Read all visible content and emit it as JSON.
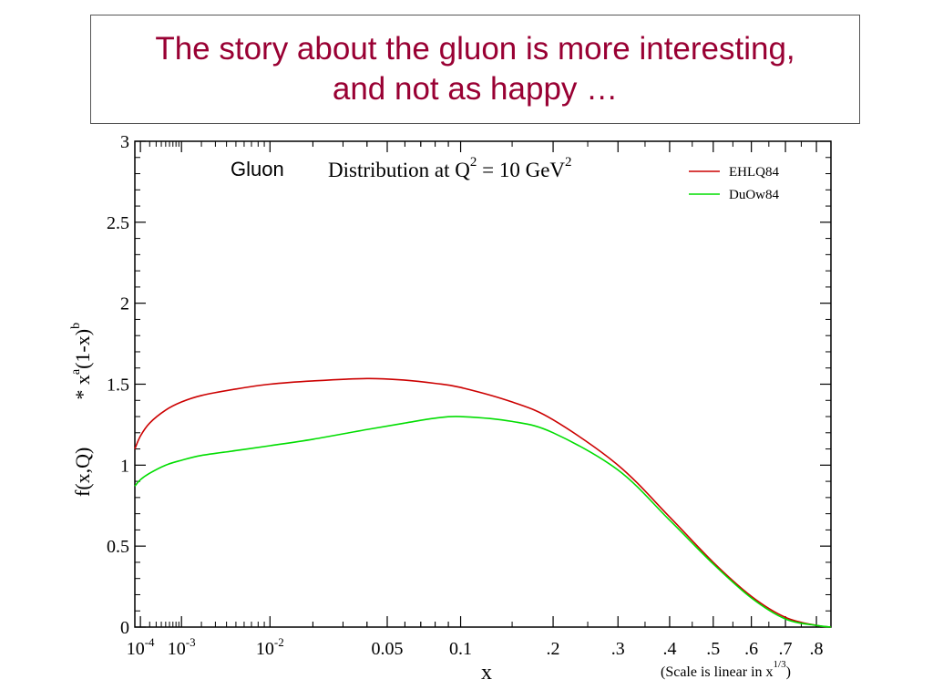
{
  "slide": {
    "title_line1": "The story about the gluon is more interesting,",
    "title_line2": "and not as happy …"
  },
  "chart_data": {
    "type": "line",
    "panel_label": "Gluon",
    "title_main": "Distribution at Q",
    "title_sup1": "2",
    "title_mid": " = 10 GeV",
    "title_sup2": "2",
    "xlabel": "x",
    "x_scale_note_main": "(Scale is linear in x",
    "x_scale_note_sup": "1/3",
    "x_scale_note_end": ")",
    "ylabel_main": "f(x,Q)",
    "ylabel_star": "* x",
    "ylabel_sup_a": "a",
    "ylabel_mid": "(1-x)",
    "ylabel_sup_b": "b",
    "x_scale": "cube-root",
    "xlim": [
      6e-05,
      0.85
    ],
    "ylim": [
      0,
      3
    ],
    "y_ticks": [
      {
        "value": 0,
        "label": "0"
      },
      {
        "value": 0.5,
        "label": "0.5"
      },
      {
        "value": 1,
        "label": "1"
      },
      {
        "value": 1.5,
        "label": "1.5"
      },
      {
        "value": 2,
        "label": "2"
      },
      {
        "value": 2.5,
        "label": "2.5"
      },
      {
        "value": 3,
        "label": "3"
      }
    ],
    "x_ticks": [
      {
        "value": 0.0001,
        "label": "10",
        "sup": "-4"
      },
      {
        "value": 0.001,
        "label": "10",
        "sup": "-3"
      },
      {
        "value": 0.01,
        "label": "10",
        "sup": "-2"
      },
      {
        "value": 0.05,
        "label": "0.05",
        "sup": ""
      },
      {
        "value": 0.1,
        "label": "0.1",
        "sup": ""
      },
      {
        "value": 0.2,
        "label": ".2",
        "sup": ""
      },
      {
        "value": 0.3,
        "label": ".3",
        "sup": ""
      },
      {
        "value": 0.4,
        "label": ".4",
        "sup": ""
      },
      {
        "value": 0.5,
        "label": ".5",
        "sup": ""
      },
      {
        "value": 0.6,
        "label": ".6",
        "sup": ""
      },
      {
        "value": 0.7,
        "label": ".7",
        "sup": ""
      },
      {
        "value": 0.8,
        "label": ".8",
        "sup": ""
      }
    ],
    "legend_position": "top-right",
    "series": [
      {
        "name": "EHLQ84",
        "color": "#cc0000",
        "x": [
          6e-05,
          0.0001,
          0.0002,
          0.0005,
          0.001,
          0.002,
          0.005,
          0.01,
          0.02,
          0.04,
          0.06,
          0.08,
          0.1,
          0.15,
          0.2,
          0.3,
          0.4,
          0.5,
          0.6,
          0.7,
          0.8,
          0.85
        ],
        "y": [
          1.1,
          1.18,
          1.26,
          1.34,
          1.39,
          1.43,
          1.47,
          1.5,
          1.52,
          1.535,
          1.525,
          1.505,
          1.48,
          1.39,
          1.28,
          1.0,
          0.68,
          0.4,
          0.19,
          0.06,
          0.01,
          0.0
        ]
      },
      {
        "name": "DuOw84",
        "color": "#00dd00",
        "x": [
          6e-05,
          0.0001,
          0.0002,
          0.0005,
          0.001,
          0.002,
          0.005,
          0.01,
          0.02,
          0.04,
          0.06,
          0.08,
          0.1,
          0.15,
          0.2,
          0.3,
          0.4,
          0.5,
          0.6,
          0.7,
          0.8,
          0.85
        ],
        "y": [
          0.87,
          0.91,
          0.95,
          1.0,
          1.03,
          1.06,
          1.09,
          1.12,
          1.16,
          1.22,
          1.26,
          1.29,
          1.3,
          1.27,
          1.2,
          0.97,
          0.66,
          0.39,
          0.18,
          0.05,
          0.01,
          0.0
        ]
      }
    ]
  }
}
